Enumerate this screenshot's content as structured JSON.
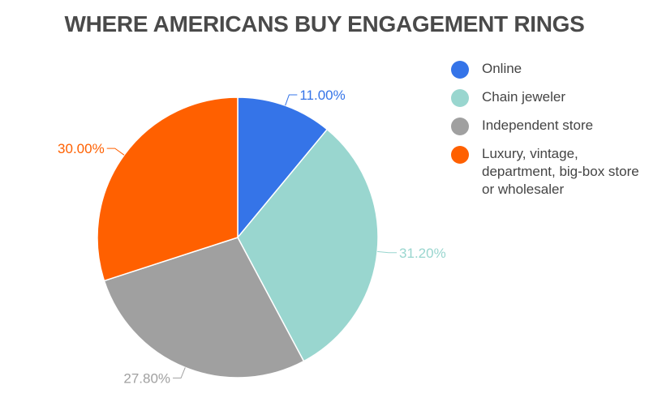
{
  "chart_data": {
    "type": "pie",
    "title": "WHERE AMERICANS BUY ENGAGEMENT RINGS",
    "categories": [
      "Online",
      "Chain jeweler",
      "Independent store",
      "Luxury, vintage, department, big-box store or wholesaler"
    ],
    "values": [
      11.0,
      31.2,
      27.8,
      30.0
    ],
    "value_labels": [
      "11.00%",
      "31.20%",
      "27.80%",
      "30.00%"
    ],
    "colors": [
      "#3574e8",
      "#99d6cf",
      "#a0a0a0",
      "#ff6000"
    ],
    "label_colors": [
      "#3574e8",
      "#99d6cf",
      "#a0a0a0",
      "#ff6000"
    ],
    "start_angle_deg": 0,
    "direction": "clockwise",
    "legend_position": "right"
  },
  "legend": {
    "items": [
      {
        "label": "Online",
        "color": "#3574e8"
      },
      {
        "label": "Chain jeweler",
        "color": "#99d6cf"
      },
      {
        "label": "Independent store",
        "color": "#a0a0a0"
      },
      {
        "label": "Luxury, vintage, department, big-box store or wholesaler",
        "color": "#ff6000"
      }
    ]
  }
}
